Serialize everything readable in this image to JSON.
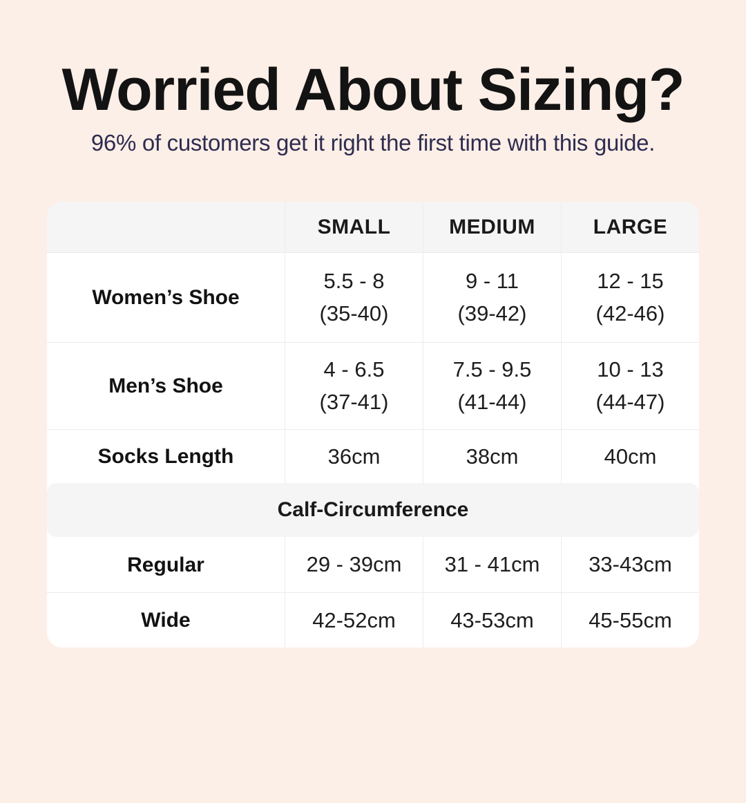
{
  "page": {
    "title": "Worried About Sizing?",
    "subtitle": "96% of customers get it right the first time with this guide."
  },
  "table": {
    "columns": [
      "SMALL",
      "MEDIUM",
      "LARGE"
    ],
    "rows": [
      {
        "label": "Women’s Shoe",
        "cells": [
          {
            "main": "5.5 - 8",
            "sub": "(35-40)"
          },
          {
            "main": "9 - 11",
            "sub": "(39-42)"
          },
          {
            "main": "12 - 15",
            "sub": "(42-46)"
          }
        ]
      },
      {
        "label": "Men’s Shoe",
        "cells": [
          {
            "main": "4 - 6.5",
            "sub": "(37-41)"
          },
          {
            "main": "7.5 - 9.5",
            "sub": "(41-44)"
          },
          {
            "main": "10 - 13",
            "sub": "(44-47)"
          }
        ]
      },
      {
        "label": "Socks Length",
        "cells": [
          {
            "main": "36cm"
          },
          {
            "main": "38cm"
          },
          {
            "main": "40cm"
          }
        ]
      }
    ],
    "section_header": "Calf-Circumference",
    "section_rows": [
      {
        "label": "Regular",
        "cells": [
          {
            "main": "29 - 39cm"
          },
          {
            "main": "31 - 41cm"
          },
          {
            "main": "33-43cm"
          }
        ]
      },
      {
        "label": "Wide",
        "cells": [
          {
            "main": "42-52cm"
          },
          {
            "main": "43-53cm"
          },
          {
            "main": "45-55cm"
          }
        ]
      }
    ]
  },
  "colors": {
    "background": "#fcefe7",
    "title_text": "#131313",
    "subtitle_text": "#2f2c50",
    "table_background": "#ffffff",
    "header_row_background": "#f5f5f5",
    "divider": "#ececec"
  },
  "chart_data": {
    "type": "table",
    "title": "Worried About Sizing?",
    "subtitle": "96% of customers get it right the first time with this guide.",
    "columns": [
      "",
      "SMALL",
      "MEDIUM",
      "LARGE"
    ],
    "rows": [
      [
        "Women’s Shoe",
        "5.5 - 8 (35-40)",
        "9 - 11 (39-42)",
        "12 - 15 (42-46)"
      ],
      [
        "Men’s Shoe",
        "4 - 6.5 (37-41)",
        "7.5 - 9.5 (41-44)",
        "10 - 13 (44-47)"
      ],
      [
        "Socks Length",
        "36cm",
        "38cm",
        "40cm"
      ],
      [
        "Calf-Circumference",
        "",
        "",
        ""
      ],
      [
        "Regular",
        "29 - 39cm",
        "31 - 41cm",
        "33-43cm"
      ],
      [
        "Wide",
        "42-52cm",
        "43-53cm",
        "45-55cm"
      ]
    ]
  }
}
